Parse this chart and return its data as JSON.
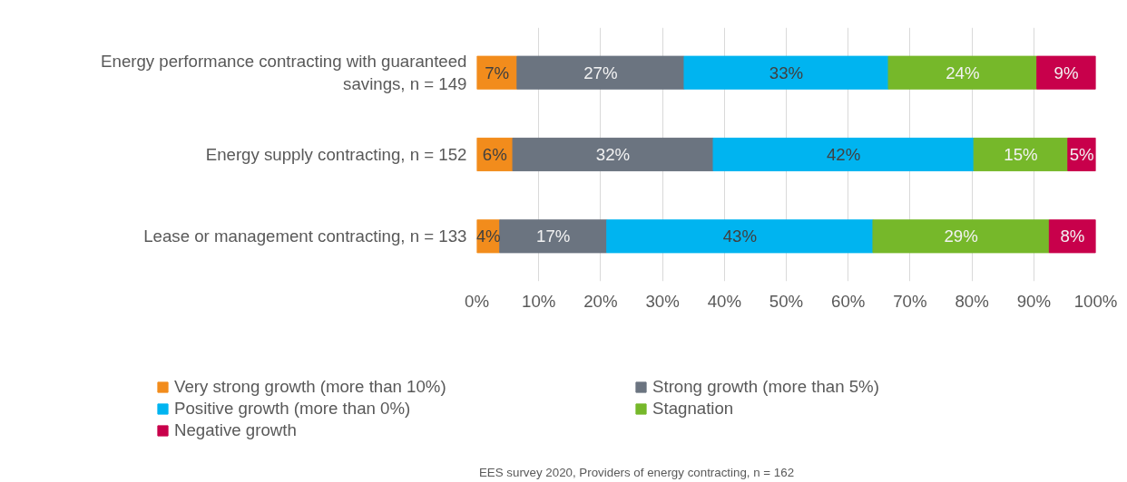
{
  "chart_data": {
    "type": "bar",
    "orientation": "horizontal",
    "stacked": true,
    "categories": [
      "Energy performance contracting with guaranteed savings, n = 149",
      "Energy supply contracting, n = 152",
      "Lease or management contracting, n = 133"
    ],
    "series": [
      {
        "name": "Very strong growth (more than 10%)",
        "color": "#f28c1c",
        "values": [
          6.5,
          5.8,
          3.7
        ],
        "value_labels": [
          "7%",
          "6%",
          "4%"
        ]
      },
      {
        "name": "Strong growth (more than 5%)",
        "color": "#6b7480",
        "values": [
          27,
          32.4,
          17.3
        ],
        "value_labels": [
          "27%",
          "32%",
          "17%"
        ]
      },
      {
        "name": "Positive growth (more than 0%)",
        "color": "#00b4f0",
        "values": [
          33,
          42.1,
          43
        ],
        "value_labels": [
          "33%",
          "42%",
          "43%"
        ]
      },
      {
        "name": "Stagnation",
        "color": "#76b82a",
        "values": [
          24,
          15.2,
          28.5
        ],
        "value_labels": [
          "24%",
          "15%",
          "29%"
        ]
      },
      {
        "name": "Negative growth",
        "color": "#c8004b",
        "values": [
          9.5,
          4.5,
          7.5
        ],
        "value_labels": [
          "9%",
          "5%",
          "8%"
        ]
      }
    ],
    "xlim": [
      0,
      100
    ],
    "xticks": [
      {
        "value": 0,
        "label": "0%"
      },
      {
        "value": 10,
        "label": "10%"
      },
      {
        "value": 20,
        "label": "20%"
      },
      {
        "value": 30,
        "label": "30%"
      },
      {
        "value": 40,
        "label": "40%"
      },
      {
        "value": 50,
        "label": "50%"
      },
      {
        "value": 60,
        "label": "60%"
      },
      {
        "value": 70,
        "label": "70%"
      },
      {
        "value": 80,
        "label": "80%"
      },
      {
        "value": 90,
        "label": "90%"
      },
      {
        "value": 100,
        "label": "100%"
      }
    ],
    "grid": "x",
    "legend": "bottom",
    "annotations": [
      "EES survey 2020, Providers of energy contracting, n = 162"
    ]
  }
}
